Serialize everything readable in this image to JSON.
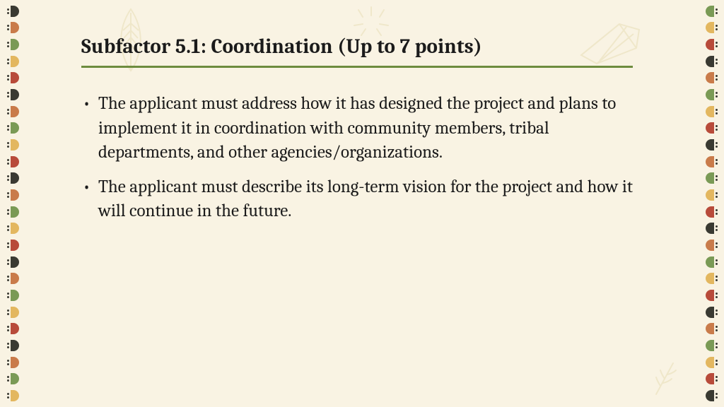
{
  "slide": {
    "title": "Subfactor 5.1: Coordination (Up to 7 points)",
    "bullets": [
      "The applicant must address how it has designed the project and plans to implement it in coordination with community members, tribal departments, and other agencies/organizations.",
      "The applicant must describe its long-term vision for the project and how it will continue in the future."
    ]
  },
  "style": {
    "background_color": "#f9f3e3",
    "title_color": "#1b1b1b",
    "title_fontsize": 29,
    "title_underline_color": "#6d8c3e",
    "body_color": "#1b1b1b",
    "body_fontsize": 25,
    "bead_colors": [
      "#3a3a32",
      "#c97b4a",
      "#7a9a55",
      "#e3b75f",
      "#b84b3a"
    ],
    "doodle_stroke": "#d8c98c"
  }
}
